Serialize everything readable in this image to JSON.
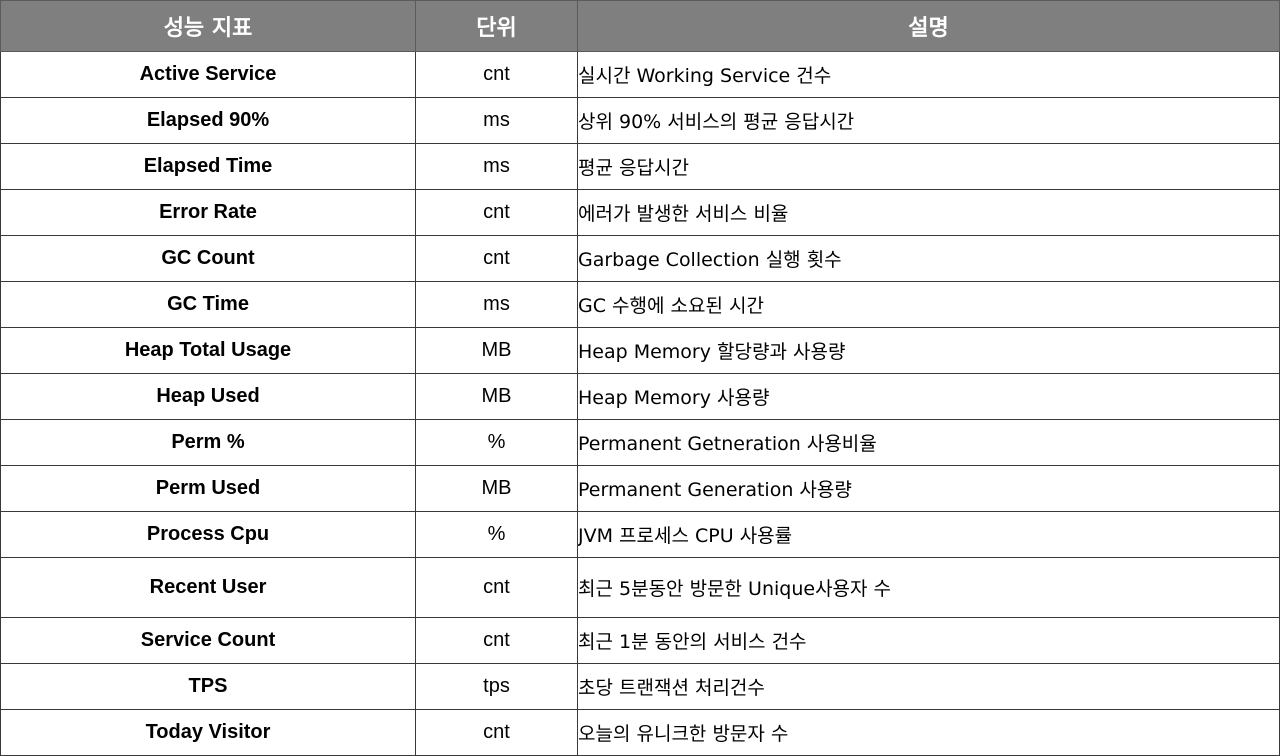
{
  "table": {
    "headers": {
      "metric": "성능 지표",
      "unit": "단위",
      "description": "설명"
    },
    "rows": [
      {
        "metric": "Active Service",
        "unit": "cnt",
        "description": "실시간 Working Service 건수"
      },
      {
        "metric": "Elapsed 90%",
        "unit": "ms",
        "description": "상위 90% 서비스의 평균 응답시간"
      },
      {
        "metric": "Elapsed Time",
        "unit": "ms",
        "description": "평균 응답시간"
      },
      {
        "metric": "Error Rate",
        "unit": "cnt",
        "description": "에러가 발생한 서비스 비율"
      },
      {
        "metric": "GC Count",
        "unit": "cnt",
        "description": "Garbage Collection 실행 횟수"
      },
      {
        "metric": "GC Time",
        "unit": "ms",
        "description": "GC 수행에 소요된 시간"
      },
      {
        "metric": "Heap Total Usage",
        "unit": "MB",
        "description": "Heap Memory 할당량과 사용량"
      },
      {
        "metric": "Heap Used",
        "unit": "MB",
        "description": "Heap Memory 사용량"
      },
      {
        "metric": "Perm %",
        "unit": "%",
        "description": "Permanent Getneration 사용비율"
      },
      {
        "metric": "Perm Used",
        "unit": "MB",
        "description": "Permanent Generation 사용량"
      },
      {
        "metric": "Process Cpu",
        "unit": "%",
        "description": "JVM 프로세스 CPU 사용률"
      },
      {
        "metric": "Recent User",
        "unit": "cnt",
        "description": "최근 5분동안 방문한 Unique사용자 수"
      },
      {
        "metric": "Service Count",
        "unit": "cnt",
        "description": "최근 1분 동안의 서비스 건수"
      },
      {
        "metric": "TPS",
        "unit": "tps",
        "description": "초당 트랜잭션 처리건수"
      },
      {
        "metric": "Today Visitor",
        "unit": "cnt",
        "description": "오늘의 유니크한 방문자 수"
      }
    ]
  }
}
